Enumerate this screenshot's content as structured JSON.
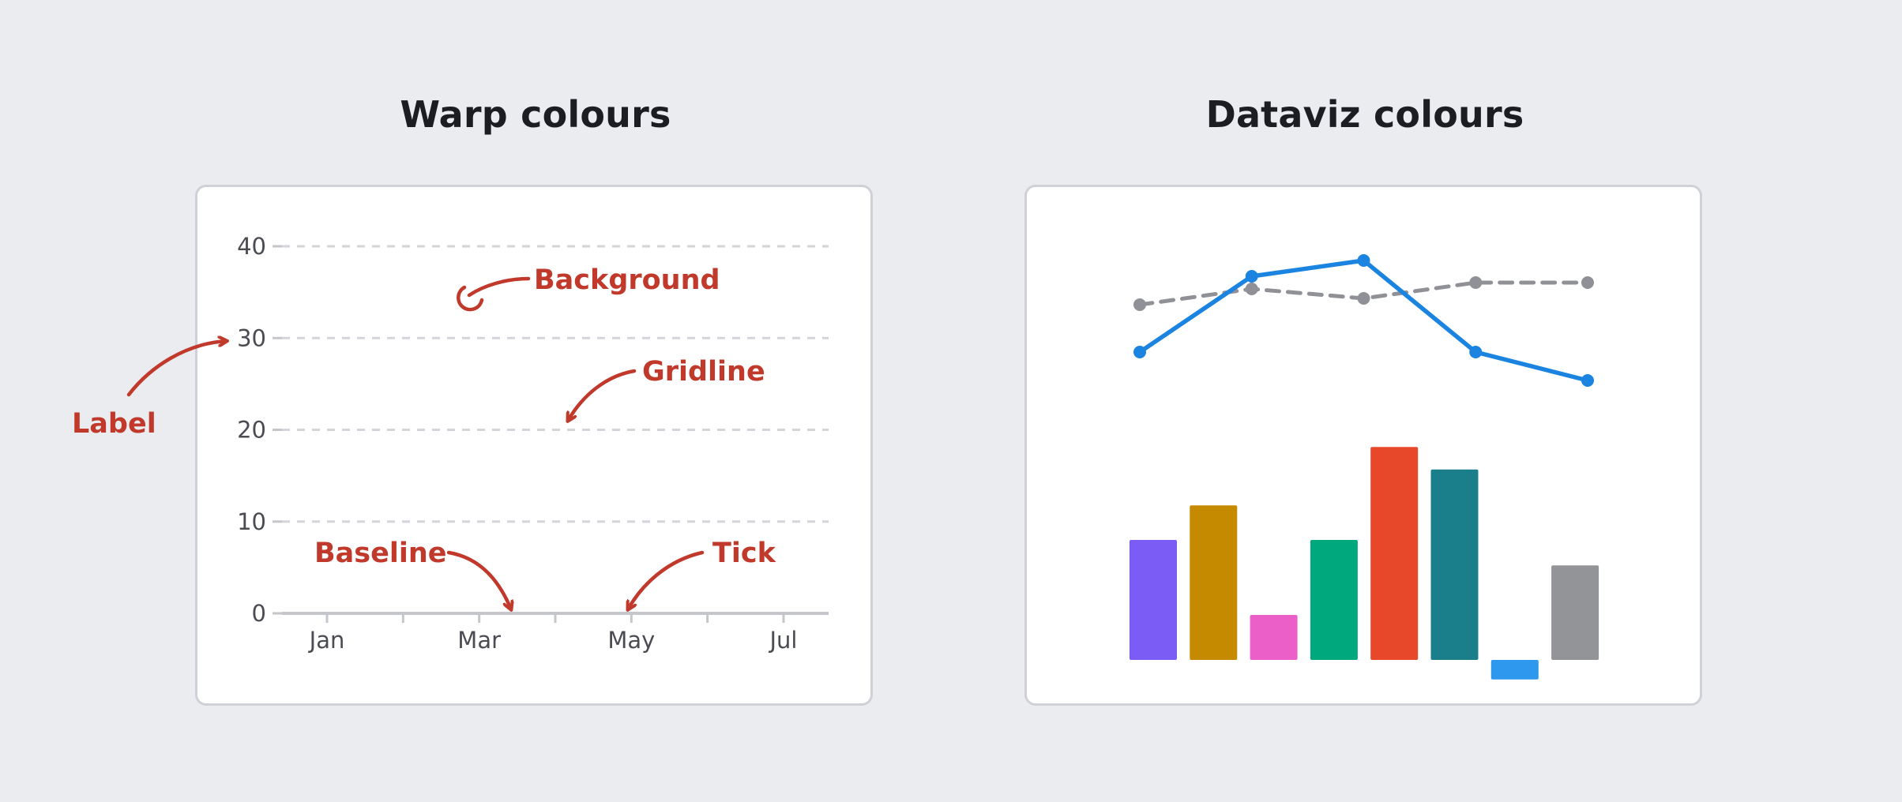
{
  "panels": {
    "left_title": "Warp colours",
    "right_title": "Dataviz colours"
  },
  "annotations": {
    "background": "Background",
    "gridline": "Gridline",
    "label": "Label",
    "baseline": "Baseline",
    "tick": "Tick"
  },
  "colors": {
    "annotation": "#c0392b",
    "gridline": "#d4d5da",
    "baseline": "#c5c6cc",
    "line_blue": "#1a84e0",
    "line_gray": "#8f9196"
  },
  "chart_data": [
    {
      "type": "line",
      "title": "",
      "x_ticks": [
        "Jan",
        "Mar",
        "May",
        "Jul"
      ],
      "y_ticks": [
        0,
        10,
        20,
        30,
        40
      ],
      "ylim": [
        0,
        40
      ],
      "grid": true,
      "series": []
    },
    {
      "type": "line",
      "title": "",
      "x": [
        1,
        2,
        3,
        4,
        5
      ],
      "series": [
        {
          "style": "solid",
          "color": "#1a84e0",
          "values": [
            23,
            35,
            37.5,
            23,
            18.5
          ]
        },
        {
          "style": "dashed",
          "color": "#8f9196",
          "values": [
            30.5,
            33,
            31.5,
            34,
            34
          ]
        }
      ],
      "ylim": [
        0,
        45
      ]
    },
    {
      "type": "bar",
      "title": "",
      "values": [
        8,
        10.3,
        3,
        8,
        14.2,
        12.7,
        -1.3,
        6.3
      ],
      "colors": [
        "#7b5cf5",
        "#c68a00",
        "#eb5fc8",
        "#00a87e",
        "#e8482a",
        "#1a7f8a",
        "#2e98ef",
        "#939498"
      ]
    }
  ]
}
